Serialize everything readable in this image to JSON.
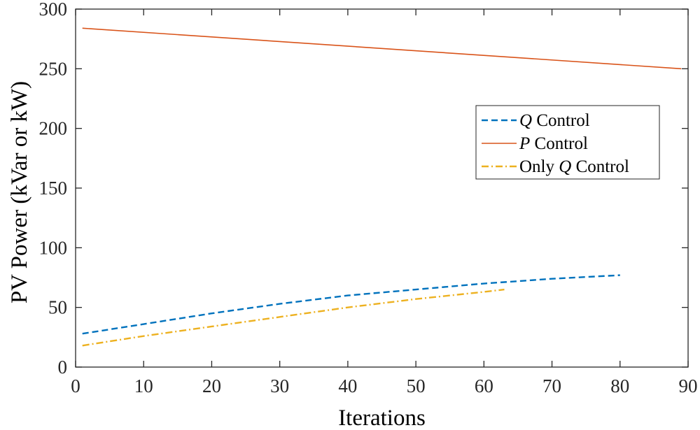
{
  "chart_data": {
    "type": "line",
    "title": "",
    "xlabel": "Iterations",
    "ylabel": "PV Power (kVar or kW)",
    "xlim": [
      0,
      90
    ],
    "ylim": [
      0,
      300
    ],
    "xticks": [
      0,
      10,
      20,
      30,
      40,
      50,
      60,
      70,
      80,
      90
    ],
    "yticks": [
      0,
      50,
      100,
      150,
      200,
      250,
      300
    ],
    "grid": false,
    "legend_position": "center-right",
    "series": [
      {
        "name": "Q Control",
        "legend_italic": "Q",
        "legend_rest": " Control",
        "color": "#0072BD",
        "style": "dashed",
        "x": [
          1,
          10,
          20,
          30,
          40,
          50,
          60,
          70,
          80
        ],
        "y": [
          28,
          36,
          45,
          53,
          60,
          65,
          70,
          74,
          77
        ]
      },
      {
        "name": "P Control",
        "legend_italic": "P",
        "legend_rest": " Control",
        "color": "#D95319",
        "style": "solid",
        "x": [
          1,
          89
        ],
        "y": [
          284,
          250
        ]
      },
      {
        "name": "Only Q Control",
        "legend_prefix": "Only ",
        "legend_italic": "Q",
        "legend_rest": " Control",
        "color": "#EDB120",
        "style": "dashdot",
        "x": [
          1,
          10,
          20,
          30,
          40,
          50,
          60,
          63
        ],
        "y": [
          18,
          26,
          34,
          42,
          50,
          57,
          63,
          65
        ]
      }
    ]
  }
}
